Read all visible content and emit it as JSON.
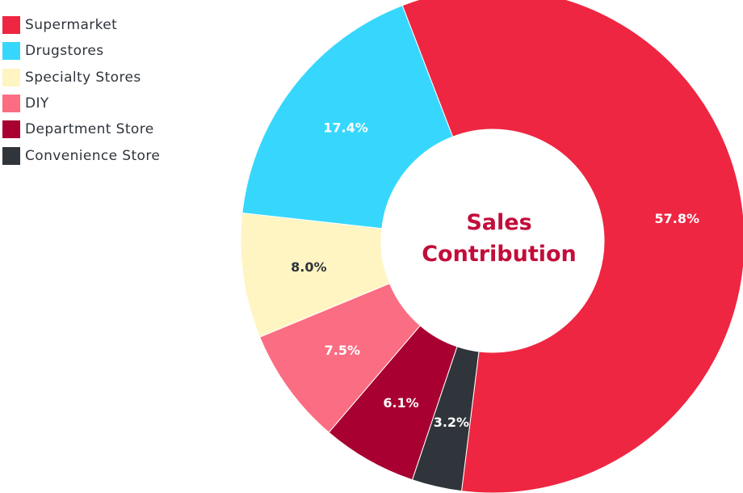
{
  "chart_data": {
    "type": "pie",
    "donut": true,
    "title_lines": [
      "Sales",
      "Contribution"
    ],
    "legend_position": "top-left",
    "slices": [
      {
        "name": "Supermarket",
        "value": 57.8,
        "label": "57.8%",
        "color": "#ee2642",
        "label_color": "#ffffff"
      },
      {
        "name": "Drugstores",
        "value": 17.4,
        "label": "17.4%",
        "color": "#37d7fd",
        "label_color": "#ffffff"
      },
      {
        "name": "Specialty Stores",
        "value": 8.0,
        "label": "8.0%",
        "color": "#fff5c3",
        "label_color": "#2f343b"
      },
      {
        "name": "DIY",
        "value": 7.5,
        "label": "7.5%",
        "color": "#fb6d82",
        "label_color": "#ffffff"
      },
      {
        "name": "Department Store",
        "value": 6.1,
        "label": "6.1%",
        "color": "#a80030",
        "label_color": "#ffffff"
      },
      {
        "name": "Convenience Store",
        "value": 3.2,
        "label": "3.2%",
        "color": "#30353b",
        "label_color": "#ffffff"
      }
    ],
    "plot_order": [
      "Supermarket",
      "Convenience Store",
      "Department Store",
      "DIY",
      "Specialty Stores",
      "Drugstores"
    ],
    "start_angle_deg": -21
  }
}
